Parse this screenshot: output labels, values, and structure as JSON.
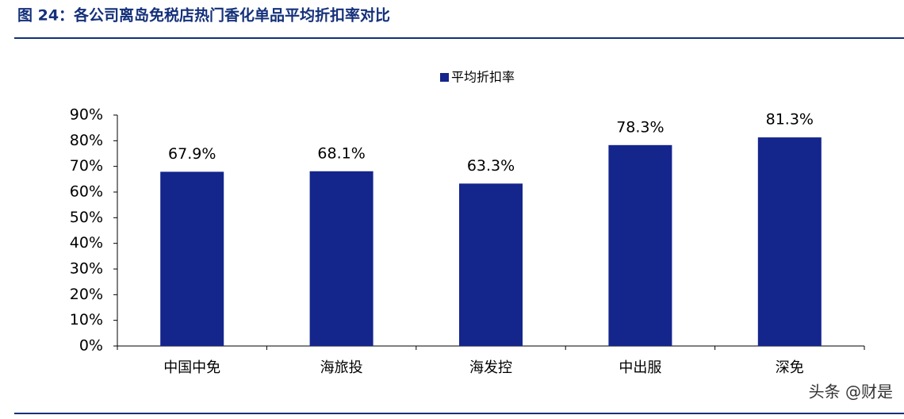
{
  "chart_data": {
    "type": "bar",
    "title": "图 24：各公司离岛免税店热门香化单品平均折扣率对比",
    "categories": [
      "中国中免",
      "海旅投",
      "海发控",
      "中出服",
      "深免"
    ],
    "series": [
      {
        "name": "平均折扣率",
        "color": "#14258c",
        "values": [
          67.9,
          68.1,
          63.3,
          78.3,
          81.3
        ],
        "value_labels": [
          "67.9%",
          "68.1%",
          "63.3%",
          "78.3%",
          "81.3%"
        ]
      }
    ],
    "ylim": [
      0,
      90
    ],
    "yticks": [
      {
        "value": 0,
        "label": "0%"
      },
      {
        "value": 10,
        "label": "10%"
      },
      {
        "value": 20,
        "label": "20%"
      },
      {
        "value": 30,
        "label": "30%"
      },
      {
        "value": 40,
        "label": "40%"
      },
      {
        "value": 50,
        "label": "50%"
      },
      {
        "value": 60,
        "label": "60%"
      },
      {
        "value": 70,
        "label": "70%"
      },
      {
        "value": 80,
        "label": "80%"
      },
      {
        "value": 90,
        "label": "90%"
      }
    ],
    "legend": "top",
    "watermark": "头条 @财是"
  }
}
